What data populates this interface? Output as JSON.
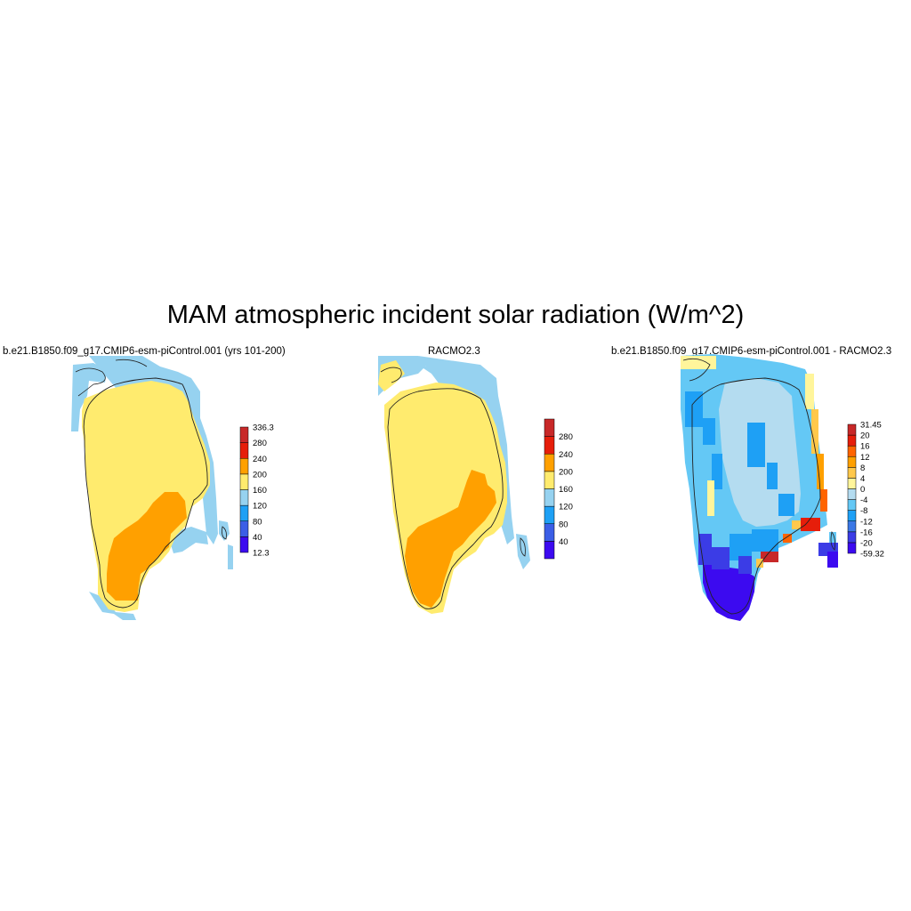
{
  "figure": {
    "title": "MAM atmospheric incident solar radiation (W/m^2)"
  },
  "panels": [
    {
      "title": "b.e21.B1850.f09_g17.CMIP6-esm-piControl.001 (yrs 101-200)",
      "colorbar": {
        "colors": [
          "#3c0af0",
          "#3b5ee6",
          "#1ea0f5",
          "#96d2f0",
          "#ffeb6e",
          "#ffa000",
          "#e61e0a",
          "#c82828"
        ],
        "labels": [
          "12.3",
          "40",
          "80",
          "120",
          "160",
          "200",
          "240",
          "280",
          "336.3"
        ]
      }
    },
    {
      "title": "RACMO2.3",
      "colorbar": {
        "colors": [
          "#3c0af0",
          "#3b5ee6",
          "#1ea0f5",
          "#96d2f0",
          "#ffeb6e",
          "#ffa000",
          "#e61e0a",
          "#c82828"
        ],
        "labels": [
          "",
          "40",
          "80",
          "120",
          "160",
          "200",
          "240",
          "280",
          ""
        ]
      }
    },
    {
      "title": "b.e21.B1850.f09_g17.CMIP6-esm-piControl.001 - RACMO2.3",
      "colorbar": {
        "colors": [
          "#3c0af0",
          "#3b3ce6",
          "#3b78e6",
          "#1ea0f5",
          "#64c8f5",
          "#b4dcf0",
          "#fff59b",
          "#ffc84b",
          "#ffa000",
          "#ff6400",
          "#e61e0a",
          "#c82828"
        ],
        "labels": [
          "-59.32",
          "-20",
          "-16",
          "-12",
          "-8",
          "-4",
          "0",
          "4",
          "8",
          "12",
          "16",
          "20",
          "31.45"
        ]
      }
    }
  ]
}
